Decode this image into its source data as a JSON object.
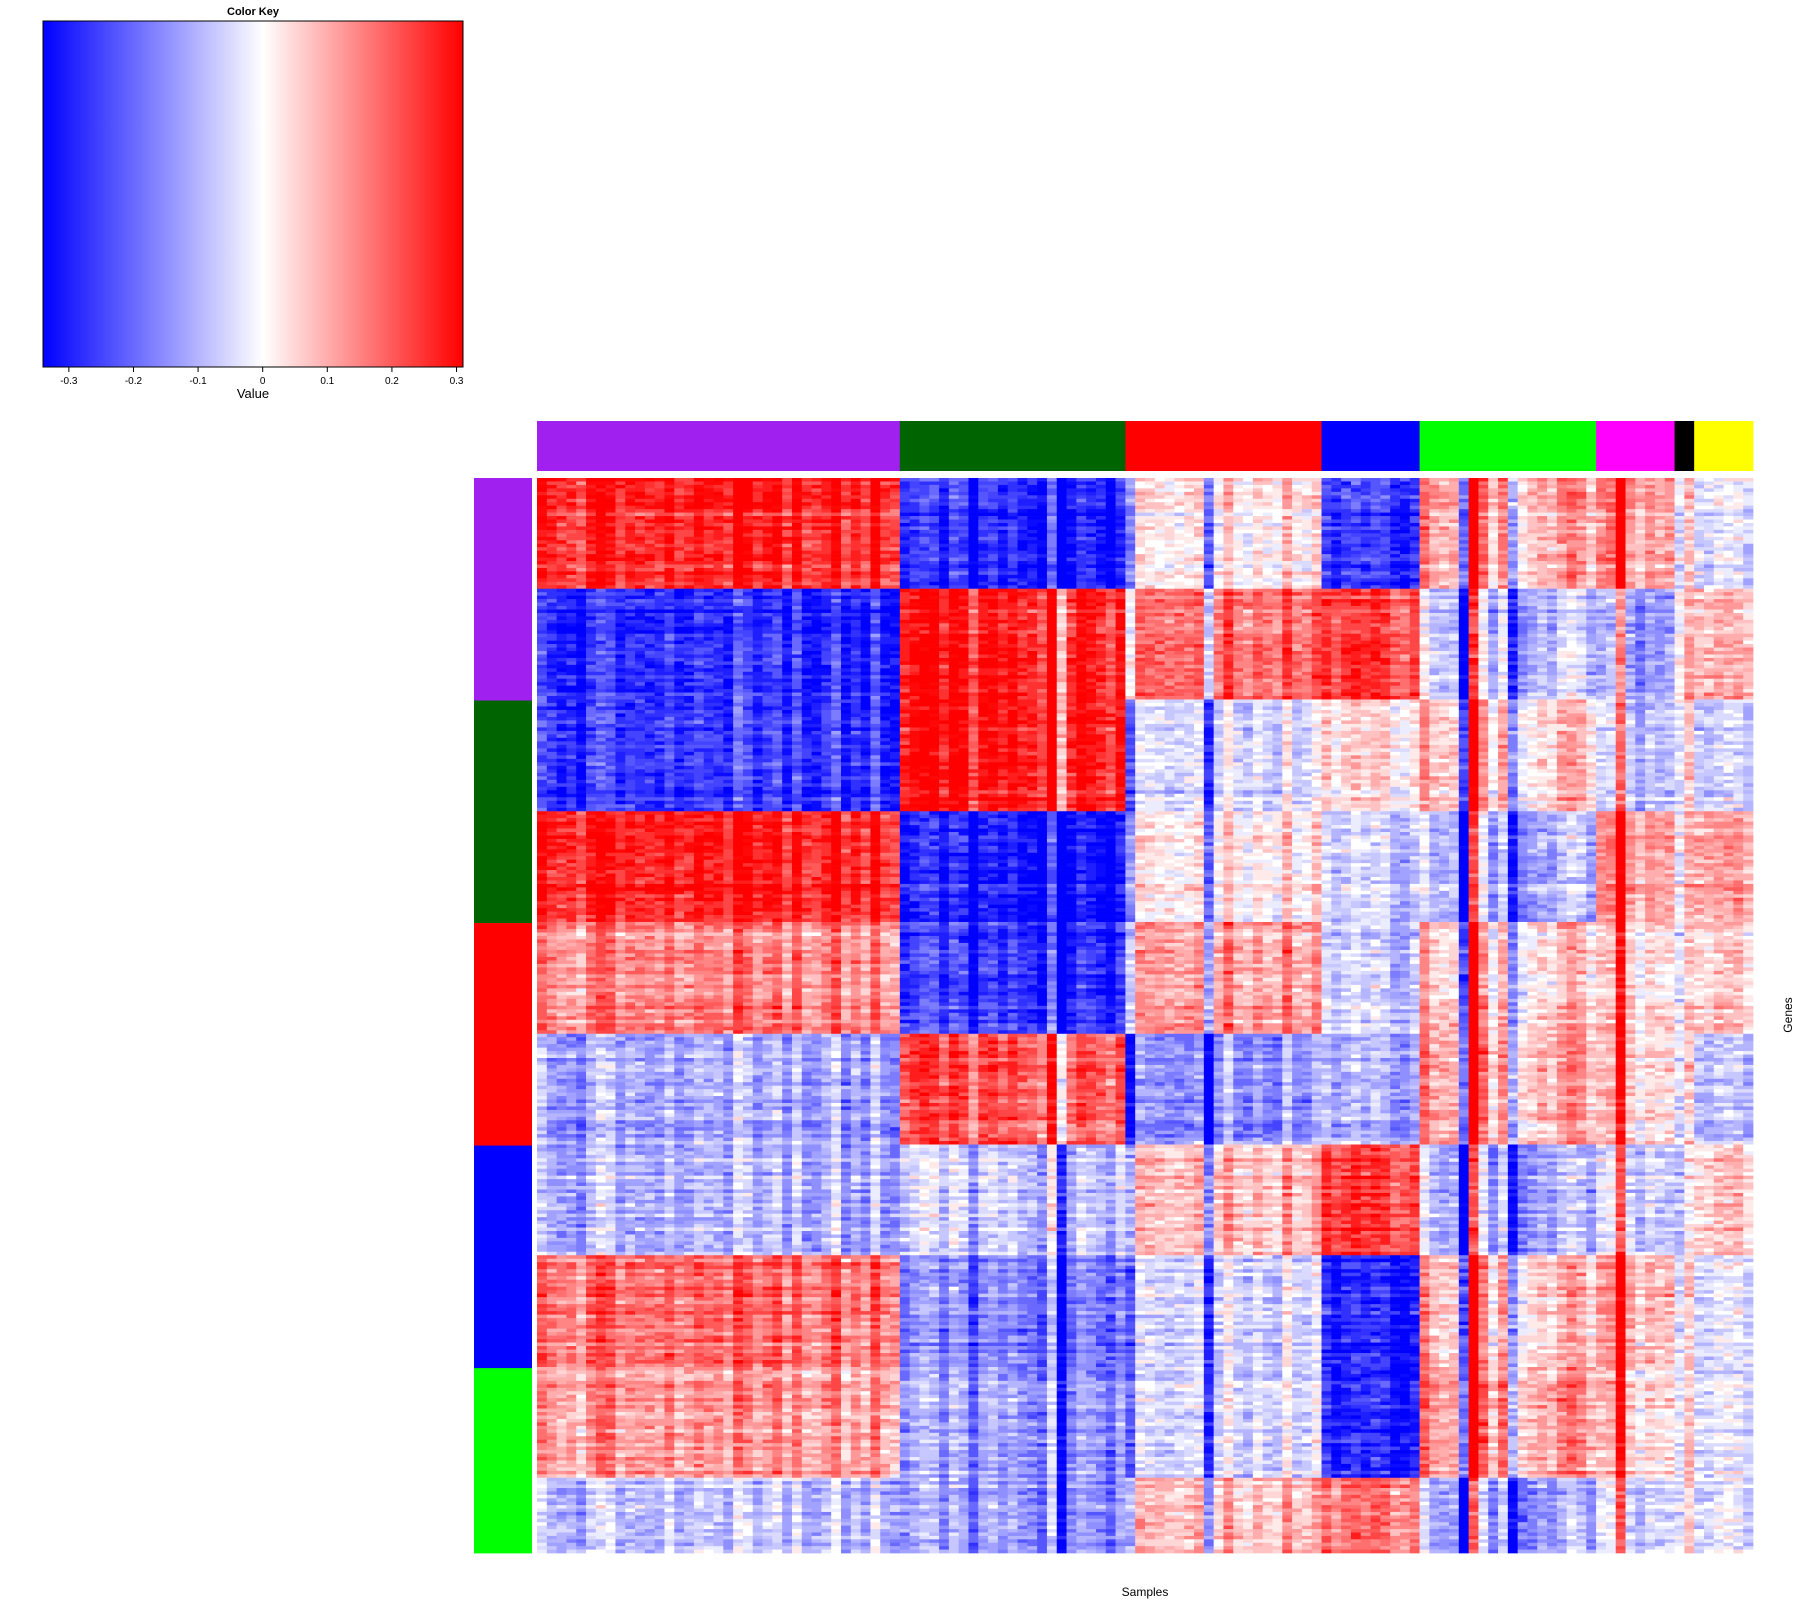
{
  "chart_data": {
    "type": "heatmap",
    "color_key": {
      "title": "Color Key",
      "xlabel": "Value",
      "range": [
        -0.34,
        0.31
      ],
      "ticks": [
        -0.3,
        -0.2,
        -0.1,
        0,
        0.1,
        0.2,
        0.3
      ],
      "tick_labels": [
        "-0.3",
        "-0.2",
        "-0.1",
        "0",
        "0.1",
        "0.2",
        "0.3"
      ],
      "low_color": "#0000ff",
      "mid_color": "#ffffff",
      "high_color": "#ff0000"
    },
    "xlabel": "Samples",
    "ylabel": "Genes",
    "column_groups": [
      {
        "color": "#a020f0",
        "fraction": 0.298
      },
      {
        "color": "#006400",
        "fraction": 0.186
      },
      {
        "color": "#ff0000",
        "fraction": 0.161
      },
      {
        "color": "#0000ff",
        "fraction": 0.081
      },
      {
        "color": "#00ff00",
        "fraction": 0.145
      },
      {
        "color": "#ff00ff",
        "fraction": 0.064
      },
      {
        "color": "#000000",
        "fraction": 0.016
      },
      {
        "color": "#ffff00",
        "fraction": 0.049
      }
    ],
    "row_groups": [
      {
        "color": "#a020f0",
        "fraction": 0.207
      },
      {
        "color": "#006400",
        "fraction": 0.207
      },
      {
        "color": "#ff0000",
        "fraction": 0.207
      },
      {
        "color": "#0000ff",
        "fraction": 0.207
      },
      {
        "color": "#00ff00",
        "fraction": 0.172
      }
    ],
    "row_bands": [
      {
        "fraction": 0.103,
        "levels": [
          0.26,
          -0.28,
          0.02,
          -0.26,
          0.12,
          0.12,
          0.0,
          -0.05
        ]
      },
      {
        "fraction": 0.103,
        "levels": [
          -0.28,
          0.3,
          0.18,
          0.25,
          -0.05,
          -0.12,
          0.05,
          0.08
        ]
      },
      {
        "fraction": 0.104,
        "levels": [
          -0.27,
          0.3,
          -0.05,
          0.05,
          0.08,
          -0.08,
          0.0,
          -0.08
        ]
      },
      {
        "fraction": 0.103,
        "levels": [
          0.27,
          -0.3,
          0.02,
          -0.05,
          -0.08,
          0.12,
          0.02,
          0.1
        ]
      },
      {
        "fraction": 0.104,
        "levels": [
          0.15,
          -0.25,
          0.12,
          -0.05,
          0.08,
          0.05,
          0.0,
          0.05
        ]
      },
      {
        "fraction": 0.103,
        "levels": [
          -0.12,
          0.22,
          -0.15,
          -0.1,
          0.12,
          0.05,
          0.0,
          -0.1
        ]
      },
      {
        "fraction": 0.103,
        "levels": [
          -0.1,
          -0.05,
          0.08,
          0.25,
          -0.08,
          -0.05,
          -0.05,
          0.05
        ]
      },
      {
        "fraction": 0.104,
        "levels": [
          0.18,
          -0.15,
          -0.05,
          -0.28,
          0.1,
          0.1,
          0.0,
          -0.05
        ]
      },
      {
        "fraction": 0.103,
        "levels": [
          0.12,
          -0.12,
          -0.05,
          -0.28,
          0.14,
          0.05,
          0.0,
          -0.05
        ]
      },
      {
        "fraction": 0.07,
        "levels": [
          -0.08,
          -0.12,
          0.08,
          0.18,
          -0.1,
          -0.05,
          0.0,
          -0.05
        ]
      }
    ]
  }
}
